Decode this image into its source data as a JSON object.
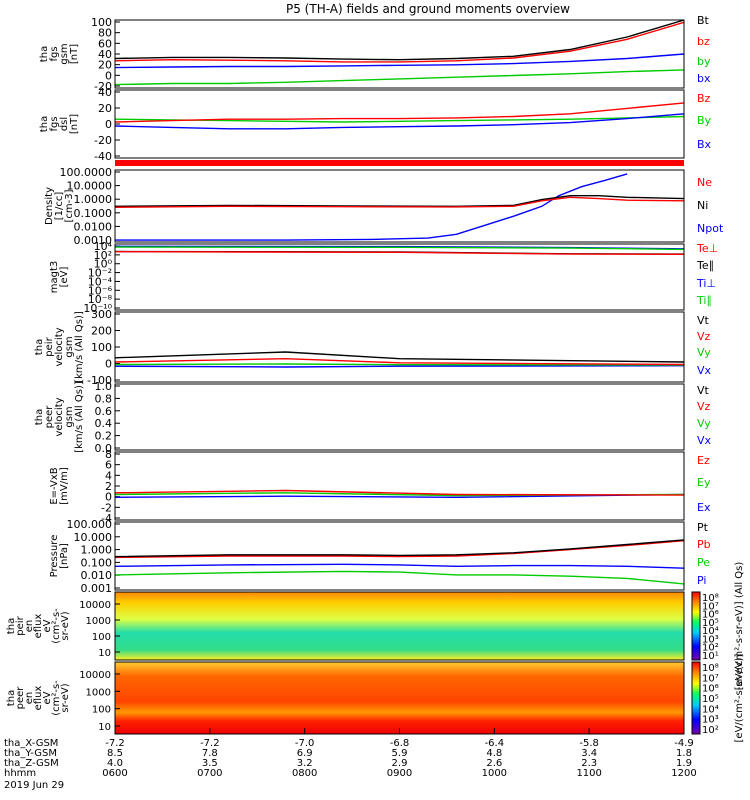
{
  "title": "P5 (TH-A) fields and ground moments overview",
  "footer": {
    "rows": [
      {
        "label": "tha_X-GSM",
        "values": [
          "-7.2",
          "-7.2",
          "-7.0",
          "-6.8",
          "-6.4",
          "-5.8",
          "-4.9"
        ]
      },
      {
        "label": "tha_Y-GSM",
        "values": [
          "8.5",
          "7.8",
          "6.9",
          "5.9",
          "4.8",
          "3.4",
          "1.8"
        ]
      },
      {
        "label": "tha_Z-GSM",
        "values": [
          "4.0",
          "3.5",
          "3.2",
          "2.9",
          "2.6",
          "2.3",
          "1.9"
        ]
      },
      {
        "label": "hhmm",
        "values": [
          "0600",
          "0700",
          "0800",
          "0900",
          "1000",
          "1100",
          "1200"
        ]
      }
    ],
    "date": "2019 Jun 29"
  },
  "colors": {
    "black": "#000000",
    "red": "#ff0000",
    "green": "#00cc00",
    "blue": "#0000ff"
  },
  "chart_data": [
    {
      "type": "line",
      "ylabel": [
        "tha",
        "fgs",
        "gsm",
        "[nT]"
      ],
      "ylim": [
        -20,
        100
      ],
      "yticks": [
        "100",
        "80",
        "60",
        "40",
        "20",
        "0",
        "-20"
      ],
      "legend": [
        {
          "text": "Bt",
          "color": "#000000"
        },
        {
          "text": "bz",
          "color": "#ff0000"
        },
        {
          "text": "by",
          "color": "#00cc00"
        },
        {
          "text": "bx",
          "color": "#0000ff"
        }
      ],
      "series": [
        {
          "color": "#00cc00",
          "x": [
            0,
            0.1,
            0.2,
            0.3,
            0.4,
            0.5,
            0.6,
            0.7,
            0.8,
            0.9,
            1
          ],
          "values": [
            -14,
            -12,
            -12,
            -10,
            -7,
            -4,
            -1,
            2,
            5,
            9,
            12
          ]
        },
        {
          "color": "#0000ff",
          "x": [
            0,
            0.1,
            0.2,
            0.3,
            0.4,
            0.5,
            0.6,
            0.7,
            0.8,
            0.9,
            1
          ],
          "values": [
            16,
            17,
            18,
            18,
            19,
            20,
            21,
            23,
            27,
            32,
            40
          ]
        },
        {
          "color": "#ff0000",
          "x": [
            0,
            0.1,
            0.2,
            0.3,
            0.4,
            0.5,
            0.6,
            0.7,
            0.8,
            0.9,
            1
          ],
          "values": [
            28,
            30,
            29,
            28,
            26,
            26,
            28,
            33,
            45,
            66,
            96
          ]
        },
        {
          "color": "#000000",
          "x": [
            0,
            0.1,
            0.2,
            0.3,
            0.4,
            0.5,
            0.6,
            0.7,
            0.8,
            0.9,
            1
          ],
          "values": [
            32,
            34,
            34,
            33,
            31,
            30,
            32,
            36,
            48,
            70,
            100
          ]
        }
      ]
    },
    {
      "type": "line",
      "ylabel": [
        "tha",
        "fgs",
        "dsl",
        "[nT]"
      ],
      "ylim": [
        -55,
        45
      ],
      "yticks": [
        "40",
        "20",
        "0",
        "-20",
        "-40"
      ],
      "legend": [
        {
          "text": "Bz",
          "color": "#ff0000"
        },
        {
          "text": "By",
          "color": "#00cc00"
        },
        {
          "text": "Bx",
          "color": "#0000ff"
        }
      ],
      "series": [
        {
          "color": "#00cc00",
          "x": [
            0,
            0.1,
            0.2,
            0.3,
            0.4,
            0.5,
            0.6,
            0.7,
            0.8,
            0.9,
            1
          ],
          "values": [
            2,
            1,
            0,
            -1,
            -2,
            -1,
            0,
            1,
            2,
            4,
            6
          ]
        },
        {
          "color": "#0000ff",
          "x": [
            0,
            0.1,
            0.2,
            0.3,
            0.4,
            0.5,
            0.6,
            0.7,
            0.8,
            0.9,
            1
          ],
          "values": [
            -8,
            -10,
            -12,
            -12,
            -10,
            -9,
            -8,
            -6,
            -3,
            3,
            10
          ]
        },
        {
          "color": "#ff0000",
          "x": [
            0,
            0.1,
            0.2,
            0.3,
            0.4,
            0.5,
            0.6,
            0.7,
            0.8,
            0.9,
            1
          ],
          "values": [
            -2,
            0,
            2,
            2,
            3,
            3,
            4,
            6,
            10,
            18,
            26
          ]
        }
      ]
    },
    {
      "type": "line",
      "ylabel": [
        "Density",
        "[1/cc]",
        "[cm-3]"
      ],
      "yscale": "log",
      "ylim": [
        0.0005,
        200
      ],
      "yticks": [
        "100.0000",
        "10.0000",
        "1.0000",
        "0.1000",
        "0.0100",
        "0.0010"
      ],
      "legend": [
        {
          "text": "Ne",
          "color": "#ff0000"
        },
        {
          "text": "Ni",
          "color": "#000000"
        },
        {
          "text": "Npot",
          "color": "#0000ff"
        }
      ],
      "series": [
        {
          "color": "#0000ff",
          "x": [
            0,
            0.3,
            0.45,
            0.55,
            0.6,
            0.65,
            0.7,
            0.75,
            0.78,
            0.82,
            0.86,
            0.9
          ],
          "values": [
            0.0007,
            0.0007,
            0.0008,
            0.001,
            0.002,
            0.01,
            0.05,
            0.3,
            2,
            10,
            30,
            100
          ]
        },
        {
          "color": "#000000",
          "x": [
            0,
            0.2,
            0.4,
            0.6,
            0.7,
            0.75,
            0.8,
            0.85,
            0.9,
            1
          ],
          "values": [
            0.3,
            0.35,
            0.32,
            0.3,
            0.35,
            1,
            2,
            2,
            1.5,
            1.2
          ]
        },
        {
          "color": "#ff0000",
          "x": [
            0,
            0.2,
            0.4,
            0.6,
            0.7,
            0.75,
            0.8,
            0.85,
            0.9,
            1
          ],
          "values": [
            0.25,
            0.3,
            0.28,
            0.27,
            0.3,
            0.8,
            1.5,
            1.2,
            0.9,
            0.8
          ]
        }
      ]
    },
    {
      "type": "line",
      "ylabel": [
        "magt3",
        "[eV]"
      ],
      "yscale": "log",
      "ylim": [
        1e-10,
        100000.0
      ],
      "yticks": [
        "10⁴",
        "10²",
        "10⁰",
        "10⁻²",
        "10⁻⁴",
        "10⁻⁶",
        "10⁻⁸",
        "10⁻¹⁰"
      ],
      "legend": [
        {
          "text": "Te⊥",
          "color": "#ff0000"
        },
        {
          "text": "Te∥",
          "color": "#000000"
        },
        {
          "text": "Ti⊥",
          "color": "#0000ff"
        },
        {
          "text": "Ti∥",
          "color": "#00cc00"
        }
      ],
      "series": [
        {
          "color": "#0000ff",
          "x": [
            0,
            0.5,
            0.8,
            1
          ],
          "values": [
            30000,
            25000,
            15000,
            8000
          ]
        },
        {
          "color": "#00cc00",
          "x": [
            0,
            0.5,
            0.8,
            1
          ],
          "values": [
            20000,
            18000,
            12000,
            6000
          ]
        },
        {
          "color": "#000000",
          "x": [
            0,
            0.5,
            0.8,
            1
          ],
          "values": [
            2000,
            1500,
            600,
            500
          ]
        },
        {
          "color": "#ff0000",
          "x": [
            0,
            0.5,
            0.8,
            1
          ],
          "values": [
            1800,
            1300,
            500,
            450
          ]
        }
      ]
    },
    {
      "type": "line",
      "ylabel": [
        "tha",
        "peir",
        "velocity",
        "gsm",
        "[km/s (All Qs)]"
      ],
      "ylim": [
        -100,
        320
      ],
      "yticks": [
        "300",
        "200",
        "100",
        "0",
        "-100"
      ],
      "legend": [
        {
          "text": "Vt",
          "color": "#000000"
        },
        {
          "text": "Vz",
          "color": "#ff0000"
        },
        {
          "text": "Vy",
          "color": "#00cc00"
        },
        {
          "text": "Vx",
          "color": "#0000ff"
        }
      ],
      "series": [
        {
          "color": "#0000ff",
          "x": [
            0,
            0.3,
            0.5,
            1
          ],
          "values": [
            -5,
            -10,
            -5,
            -2
          ]
        },
        {
          "color": "#00cc00",
          "x": [
            0,
            0.3,
            0.5,
            1
          ],
          "values": [
            5,
            8,
            4,
            2
          ]
        },
        {
          "color": "#ff0000",
          "x": [
            0,
            0.3,
            0.5,
            1
          ],
          "values": [
            20,
            40,
            15,
            5
          ]
        },
        {
          "color": "#000000",
          "x": [
            0,
            0.3,
            0.5,
            1
          ],
          "values": [
            45,
            80,
            40,
            20
          ]
        }
      ]
    },
    {
      "type": "line",
      "ylabel": [
        "tha",
        "peer",
        "velocity",
        "gsm",
        "[km/s (All Qs)]"
      ],
      "ylim": [
        0,
        1
      ],
      "yticks": [
        "1.0",
        "0.8",
        "0.6",
        "0.4",
        "0.2",
        "0.0"
      ],
      "legend": [
        {
          "text": "Vt",
          "color": "#000000"
        },
        {
          "text": "Vz",
          "color": "#ff0000"
        },
        {
          "text": "Vy",
          "color": "#00cc00"
        },
        {
          "text": "Vx",
          "color": "#0000ff"
        }
      ],
      "series": []
    },
    {
      "type": "line",
      "ylabel": [
        "E=-VxB",
        "[mV/m]"
      ],
      "ylim": [
        -4,
        8
      ],
      "yticks": [
        "8",
        "6",
        "4",
        "2",
        "0",
        "-2",
        "-4"
      ],
      "legend": [
        {
          "text": "Ez",
          "color": "#ff0000"
        },
        {
          "text": "Ey",
          "color": "#00cc00"
        },
        {
          "text": "Ex",
          "color": "#0000ff"
        }
      ],
      "series": [
        {
          "color": "#0000ff",
          "x": [
            0,
            0.3,
            0.6,
            1
          ],
          "values": [
            0,
            0.2,
            0,
            0.5
          ]
        },
        {
          "color": "#00cc00",
          "x": [
            0,
            0.3,
            0.6,
            1
          ],
          "values": [
            0.5,
            0.8,
            0.3,
            0.5
          ]
        },
        {
          "color": "#ff0000",
          "x": [
            0,
            0.3,
            0.6,
            1
          ],
          "values": [
            0.8,
            1.2,
            0.5,
            0.4
          ]
        }
      ]
    },
    {
      "type": "line",
      "ylabel": [
        "Pressure",
        "[nPa]"
      ],
      "yscale": "log",
      "ylim": [
        0.001,
        200
      ],
      "yticks": [
        "100.000",
        "10.000",
        "1.000",
        "0.100",
        "0.010",
        "0.001"
      ],
      "legend": [
        {
          "text": "Pt",
          "color": "#000000"
        },
        {
          "text": "Pb",
          "color": "#ff0000"
        },
        {
          "text": "Pe",
          "color": "#00cc00"
        },
        {
          "text": "Pi",
          "color": "#0000ff"
        }
      ],
      "series": [
        {
          "color": "#00cc00",
          "x": [
            0,
            0.2,
            0.4,
            0.5,
            0.6,
            0.7,
            0.8,
            0.9,
            1
          ],
          "values": [
            0.015,
            0.022,
            0.028,
            0.025,
            0.015,
            0.015,
            0.012,
            0.008,
            0.003
          ]
        },
        {
          "color": "#0000ff",
          "x": [
            0,
            0.2,
            0.4,
            0.5,
            0.6,
            0.7,
            0.8,
            0.9,
            1
          ],
          "values": [
            0.07,
            0.09,
            0.1,
            0.09,
            0.07,
            0.08,
            0.08,
            0.07,
            0.05
          ]
        },
        {
          "color": "#ff0000",
          "x": [
            0,
            0.2,
            0.4,
            0.5,
            0.6,
            0.7,
            0.8,
            0.9,
            1
          ],
          "values": [
            0.35,
            0.45,
            0.45,
            0.4,
            0.45,
            0.7,
            1.4,
            3,
            7
          ]
        },
        {
          "color": "#000000",
          "x": [
            0,
            0.2,
            0.4,
            0.5,
            0.6,
            0.7,
            0.8,
            0.9,
            1
          ],
          "values": [
            0.4,
            0.55,
            0.55,
            0.5,
            0.55,
            0.8,
            1.6,
            3.5,
            8
          ]
        }
      ]
    },
    {
      "type": "heatmap",
      "ylabel": [
        "tha",
        "peir",
        "en",
        "eflux",
        "eV",
        "(cm²-s-",
        "sr-eV)"
      ],
      "yticks": [
        "10000",
        "1000",
        "100",
        "10"
      ],
      "colorbar_ticks": [
        "10⁸",
        "10⁷",
        "10⁶",
        "10⁵",
        "10⁴",
        "10³",
        "10²",
        "10¹"
      ],
      "colorbar_label": "[eV/(cm²-s-sr-eV)] (All Qs)"
    },
    {
      "type": "heatmap",
      "ylabel": [
        "tha",
        "peer",
        "en",
        "eflux",
        "eV",
        "(cm²-s-",
        "sr-eV)"
      ],
      "yticks": [
        "10000",
        "1000",
        "100",
        "10"
      ],
      "colorbar_ticks": [
        "10⁸",
        "10⁷",
        "10⁶",
        "10⁵",
        "10⁴",
        "10³",
        "10²"
      ],
      "colorbar_label": "[eV/(cm²-s-sr-eV)]"
    }
  ]
}
